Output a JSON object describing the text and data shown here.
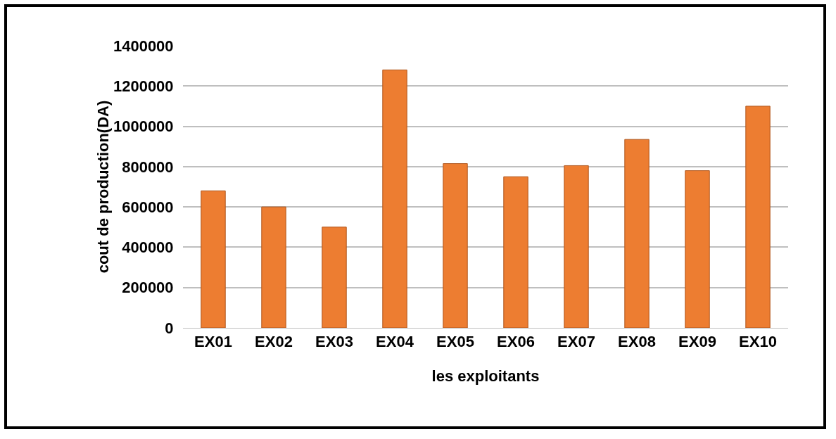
{
  "chart_data": {
    "type": "bar",
    "xlabel": "les exploitants",
    "ylabel": "cout de production(DA)",
    "categories": [
      "EX01",
      "EX02",
      "EX03",
      "EX04",
      "EX05",
      "EX06",
      "EX07",
      "EX08",
      "EX09",
      "EX10"
    ],
    "values": [
      680000,
      600000,
      500000,
      1280000,
      815000,
      750000,
      805000,
      935000,
      780000,
      1100000
    ],
    "color": "#ed7d31",
    "ylim": [
      0,
      1400000
    ],
    "yticks": [
      0,
      200000,
      400000,
      600000,
      800000,
      1000000,
      1200000,
      1400000
    ],
    "grid": "y"
  }
}
